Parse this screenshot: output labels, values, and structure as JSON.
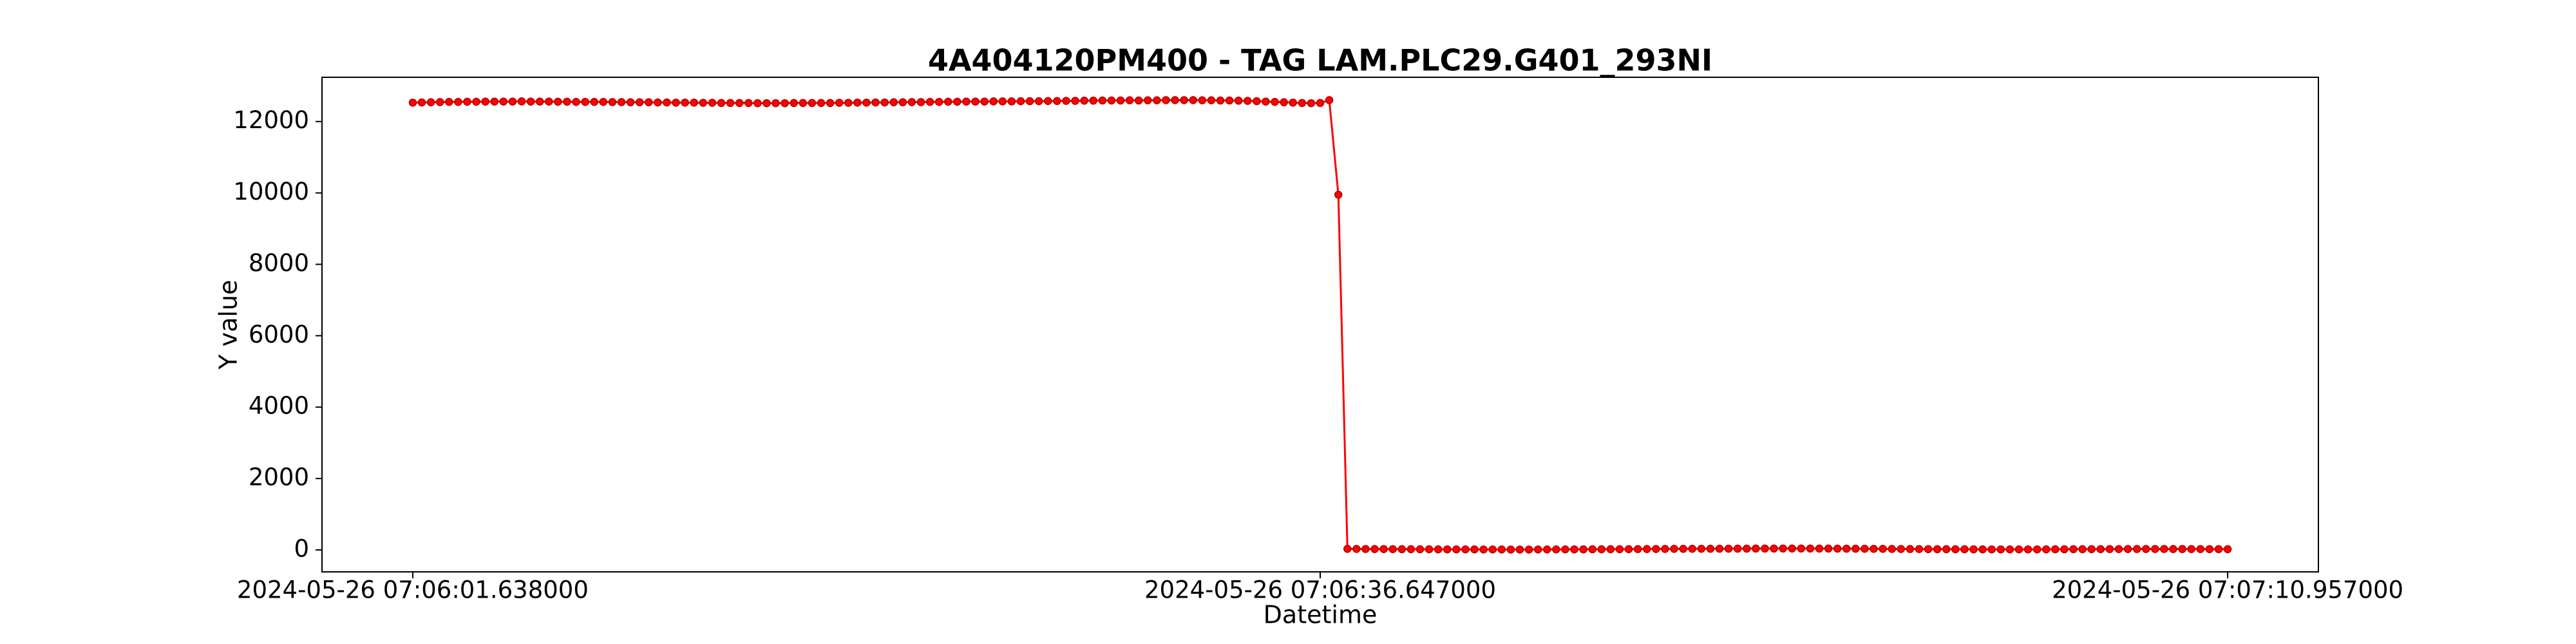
{
  "chart_data": {
    "type": "line",
    "title": "4A404120PM400 - TAG LAM.PLC29.G401_293NI",
    "x_label": "Datetime",
    "y_label": "Y value",
    "color": "#ff0000",
    "marker": true,
    "categories": [
      "2024-05-26 07:06:01.638000",
      null,
      null,
      null,
      null,
      null,
      null,
      null,
      null,
      null,
      null,
      null,
      null,
      null,
      null,
      null,
      null,
      null,
      null,
      null,
      null,
      null,
      null,
      null,
      null,
      null,
      null,
      null,
      null,
      null,
      null,
      null,
      null,
      null,
      null,
      null,
      null,
      null,
      null,
      null,
      null,
      null,
      null,
      null,
      null,
      null,
      null,
      null,
      null,
      null,
      null,
      null,
      null,
      null,
      null,
      null,
      null,
      null,
      null,
      null,
      null,
      null,
      null,
      null,
      null,
      null,
      null,
      null,
      null,
      null,
      null,
      null,
      null,
      null,
      null,
      null,
      null,
      null,
      null,
      null,
      null,
      null,
      null,
      null,
      null,
      null,
      null,
      null,
      null,
      null,
      null,
      null,
      null,
      null,
      null,
      null,
      null,
      null,
      null,
      null,
      "2024-05-26 07:06:36.647000",
      null,
      null,
      null,
      null,
      null,
      null,
      null,
      null,
      null,
      null,
      null,
      null,
      null,
      null,
      null,
      null,
      null,
      null,
      null,
      null,
      null,
      null,
      null,
      null,
      null,
      null,
      null,
      null,
      null,
      null,
      null,
      null,
      null,
      null,
      null,
      null,
      null,
      null,
      null,
      null,
      null,
      null,
      null,
      null,
      null,
      null,
      null,
      null,
      null,
      null,
      null,
      null,
      null,
      null,
      null,
      null,
      null,
      null,
      null,
      null,
      null,
      null,
      null,
      null,
      null,
      null,
      null,
      null,
      null,
      null,
      null,
      null,
      null,
      null,
      null,
      null,
      null,
      null,
      null,
      null,
      null,
      null,
      null,
      null,
      null,
      null,
      null,
      null,
      null,
      null,
      null,
      null,
      null,
      null,
      null,
      null,
      null,
      null,
      null,
      "2024-05-26 07:07:10.957000"
    ],
    "values": [
      12530,
      12535,
      12540,
      12545,
      12550,
      12550,
      12555,
      12555,
      12560,
      12560,
      12560,
      12560,
      12565,
      12560,
      12560,
      12560,
      12555,
      12555,
      12550,
      12550,
      12550,
      12550,
      12545,
      12545,
      12540,
      12540,
      12540,
      12535,
      12535,
      12530,
      12530,
      12530,
      12525,
      12525,
      12520,
      12520,
      12520,
      12520,
      12515,
      12515,
      12515,
      12515,
      12520,
      12520,
      12520,
      12520,
      12520,
      12525,
      12525,
      12530,
      12530,
      12535,
      12535,
      12540,
      12540,
      12545,
      12545,
      12550,
      12550,
      12555,
      12555,
      12560,
      12560,
      12560,
      12565,
      12565,
      12565,
      12570,
      12570,
      12570,
      12575,
      12575,
      12580,
      12580,
      12585,
      12585,
      12590,
      12590,
      12590,
      12595,
      12590,
      12595,
      12595,
      12600,
      12600,
      12600,
      12600,
      12595,
      12595,
      12590,
      12590,
      12585,
      12580,
      12570,
      12560,
      12550,
      12540,
      12530,
      12520,
      12515,
      12520,
      12600,
      9950,
      30,
      28,
      26,
      25,
      24,
      22,
      20,
      20,
      18,
      18,
      16,
      15,
      15,
      14,
      14,
      12,
      12,
      12,
      10,
      10,
      10,
      12,
      12,
      14,
      14,
      15,
      16,
      18,
      18,
      20,
      20,
      22,
      24,
      25,
      26,
      28,
      30,
      30,
      32,
      32,
      34,
      34,
      35,
      36,
      36,
      38,
      38,
      38,
      40,
      40,
      40,
      40,
      38,
      38,
      36,
      35,
      34,
      32,
      30,
      30,
      28,
      26,
      25,
      24,
      22,
      20,
      20,
      18,
      18,
      16,
      16,
      15,
      15,
      14,
      14,
      15,
      15,
      16,
      18,
      18,
      20,
      20,
      22,
      22,
      24,
      24,
      25,
      25,
      26,
      26,
      26,
      25,
      25,
      24,
      24,
      22,
      22,
      20
    ],
    "ylim": [
      -615,
      13240
    ],
    "yticks": [
      0,
      2000,
      4000,
      6000,
      8000,
      10000,
      12000
    ],
    "grid": false
  }
}
